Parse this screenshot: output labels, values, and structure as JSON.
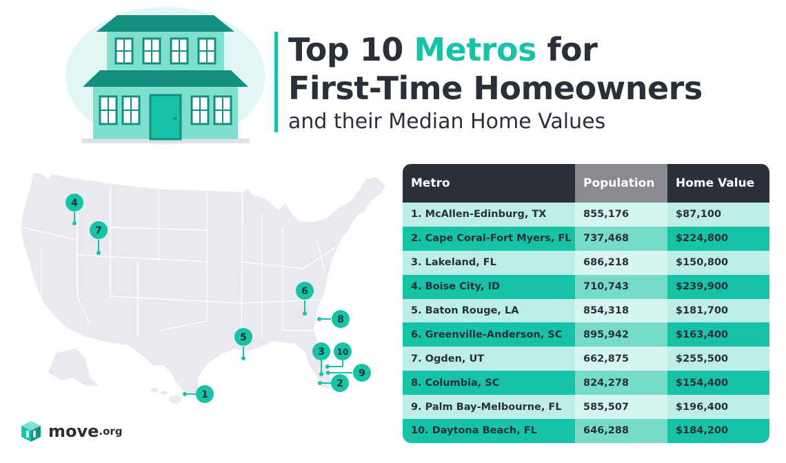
{
  "title": {
    "line1_before": "Top 10 ",
    "line1_accent": "Metros",
    "line1_after": " for",
    "line2": "First-Time Homeowners",
    "subtitle": "and their Median Home Values"
  },
  "colors": {
    "accent": "#17c3a6",
    "dark": "#2b2f3a",
    "gray_header": "#8a8b90",
    "row_light": "#bdeee5",
    "row_teal": "#17c3a6"
  },
  "map": {
    "markers": [
      "1",
      "2",
      "3",
      "4",
      "5",
      "6",
      "7",
      "8",
      "9",
      "10"
    ]
  },
  "logo": {
    "name": "move",
    "tld": ".org"
  },
  "table": {
    "headers": [
      "Metro",
      "Population",
      "Home Value"
    ],
    "rows": [
      {
        "metro": "1. McAllen-Edinburg, TX",
        "population": "855,176",
        "home_value": "$87,100"
      },
      {
        "metro": "2. Cape Coral-Fort Myers, FL",
        "population": "737,468",
        "home_value": "$224,800"
      },
      {
        "metro": "3. Lakeland, FL",
        "population": "686,218",
        "home_value": "$150,800"
      },
      {
        "metro": "4. Boise City, ID",
        "population": "710,743",
        "home_value": "$239,900"
      },
      {
        "metro": "5. Baton Rouge, LA",
        "population": "854,318",
        "home_value": "$181,700"
      },
      {
        "metro": "6. Greenville-Anderson, SC",
        "population": "895,942",
        "home_value": "$163,400"
      },
      {
        "metro": "7. Ogden, UT",
        "population": "662,875",
        "home_value": "$255,500"
      },
      {
        "metro": "8. Columbia, SC",
        "population": "824,278",
        "home_value": "$154,400"
      },
      {
        "metro": "9. Palm Bay-Melbourne, FL",
        "population": "585,507",
        "home_value": "$196,400"
      },
      {
        "metro": "10. Daytona Beach, FL",
        "population": "646,288",
        "home_value": "$184,200"
      }
    ]
  }
}
